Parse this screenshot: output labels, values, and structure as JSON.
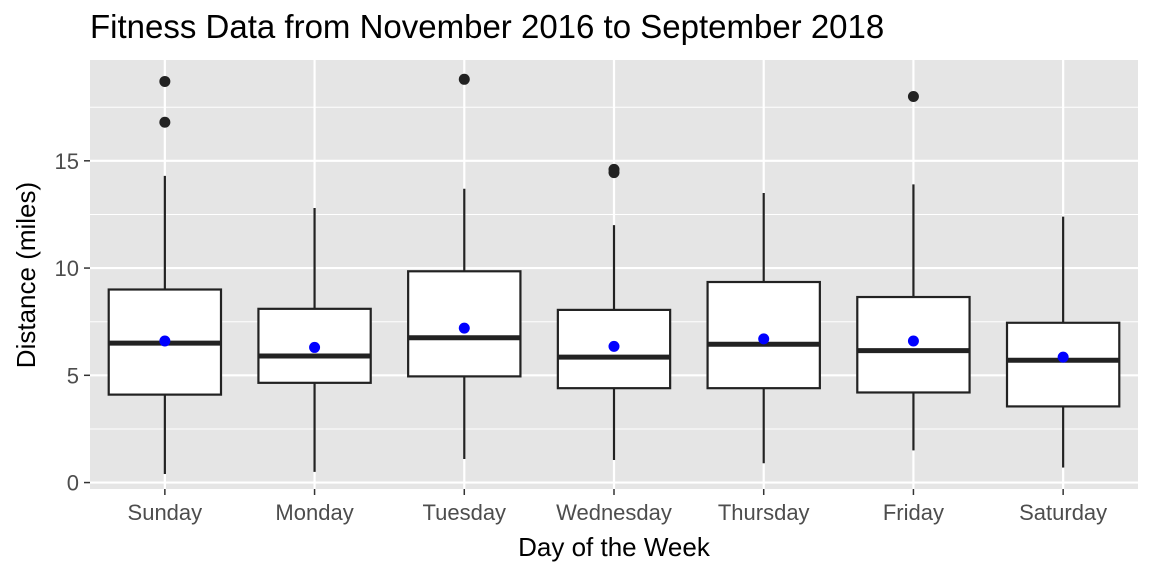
{
  "chart_data": {
    "type": "boxplot",
    "title": "Fitness Data from November 2016 to September 2018",
    "xlabel": "Day of the Week",
    "ylabel": "Distance (miles)",
    "ylim": [
      -0.3,
      19.7
    ],
    "yticks": [
      0,
      5,
      10,
      15
    ],
    "grid": true,
    "colors": {
      "panel": "#e5e5e5",
      "grid": "#ffffff",
      "box": "#222222",
      "mean_point": "#0000ff",
      "outlier": "#222222"
    },
    "categories": [
      "Sunday",
      "Monday",
      "Tuesday",
      "Wednesday",
      "Thursday",
      "Friday",
      "Saturday"
    ],
    "boxes": [
      {
        "day": "Sunday",
        "min": 0.4,
        "q1": 4.1,
        "median": 6.5,
        "q3": 9.0,
        "max": 14.3,
        "mean": 6.6,
        "outliers": [
          16.8,
          18.7
        ]
      },
      {
        "day": "Monday",
        "min": 0.5,
        "q1": 4.65,
        "median": 5.9,
        "q3": 8.1,
        "max": 12.8,
        "mean": 6.3,
        "outliers": []
      },
      {
        "day": "Tuesday",
        "min": 1.1,
        "q1": 4.95,
        "median": 6.75,
        "q3": 9.85,
        "max": 13.7,
        "mean": 7.2,
        "outliers": [
          18.8
        ]
      },
      {
        "day": "Wednesday",
        "min": 1.05,
        "q1": 4.4,
        "median": 5.85,
        "q3": 8.05,
        "max": 12.0,
        "mean": 6.35,
        "outliers": [
          14.45,
          14.6
        ]
      },
      {
        "day": "Thursday",
        "min": 0.9,
        "q1": 4.4,
        "median": 6.45,
        "q3": 9.35,
        "max": 13.5,
        "mean": 6.7,
        "outliers": []
      },
      {
        "day": "Friday",
        "min": 1.5,
        "q1": 4.2,
        "median": 6.15,
        "q3": 8.65,
        "max": 13.9,
        "mean": 6.6,
        "outliers": [
          18.0
        ]
      },
      {
        "day": "Saturday",
        "min": 0.7,
        "q1": 3.55,
        "median": 5.7,
        "q3": 7.45,
        "max": 12.4,
        "mean": 5.85,
        "outliers": []
      }
    ]
  }
}
